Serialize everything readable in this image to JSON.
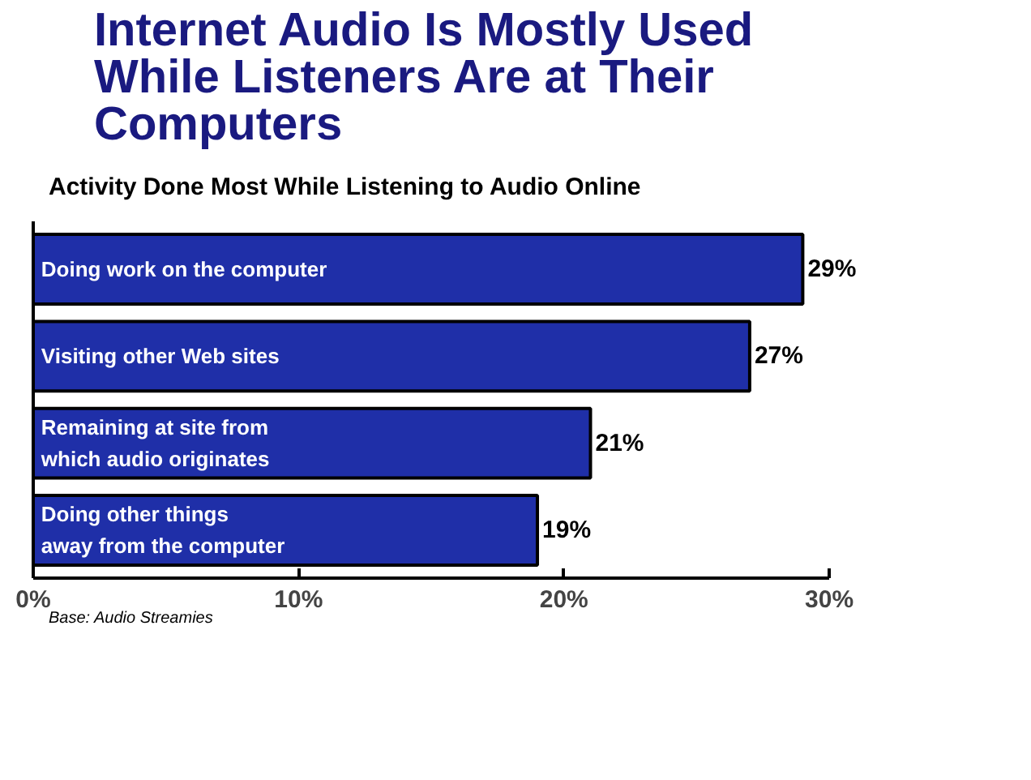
{
  "chart_data": {
    "type": "bar",
    "orientation": "horizontal",
    "title": "Internet Audio Is Mostly Used While Listeners Are at Their Computers",
    "subtitle": "Activity Done Most While Listening to Audio Online",
    "categories": [
      "Doing work on the computer",
      "Visiting other Web sites",
      "Remaining at site from\nwhich audio originates",
      "Doing other things\naway from the computer"
    ],
    "values": [
      29,
      27,
      21,
      19
    ],
    "value_labels": [
      "29%",
      "27%",
      "21%",
      "19%"
    ],
    "color": "#1f2fa8",
    "xlim": [
      0,
      30
    ],
    "xticks": [
      {
        "value": 0,
        "label": "0%"
      },
      {
        "value": 10,
        "label": "10%"
      },
      {
        "value": 20,
        "label": "20%"
      },
      {
        "value": 30,
        "label": "30%"
      }
    ],
    "tick_labels": "x",
    "grid": false,
    "annotations": [
      "Base: Audio Streamies"
    ]
  }
}
